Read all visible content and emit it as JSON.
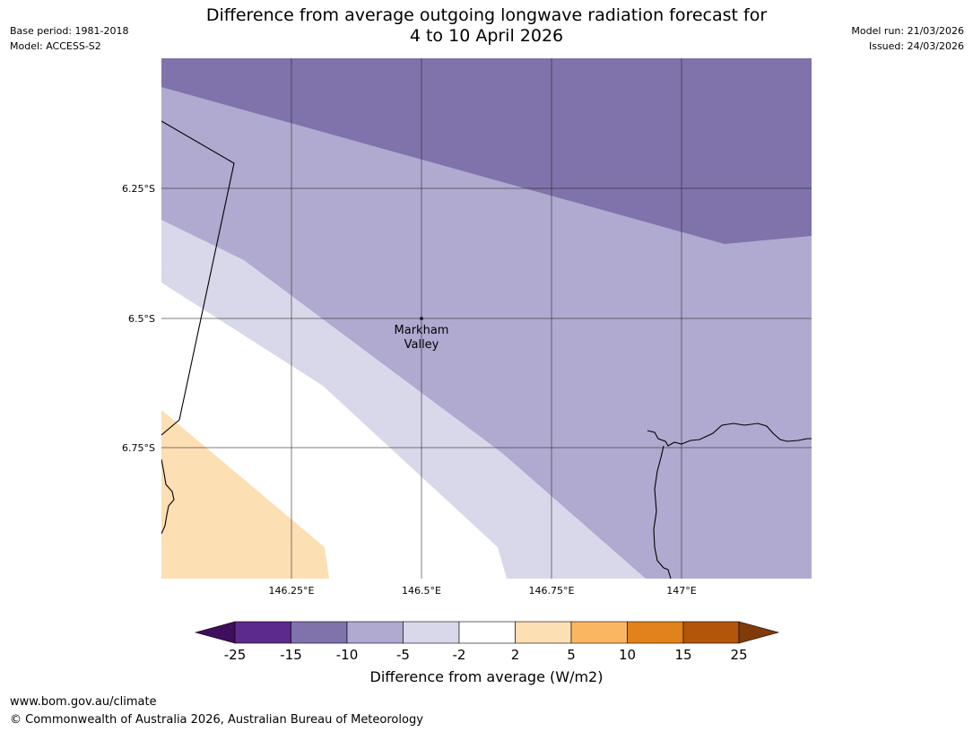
{
  "header": {
    "title_line1": "Difference from average outgoing longwave radiation forecast for",
    "title_line2": "4 to 10 April 2026",
    "base_period": "Base period: 1981-2018",
    "model": "Model: ACCESS-S2",
    "model_run": "Model run: 21/03/2026",
    "issued": "Issued: 24/03/2026"
  },
  "map": {
    "place_label_line1": "Markham",
    "place_label_line2": "Valley",
    "lat_labels": [
      "6.25°S",
      "6.5°S",
      "6.75°S"
    ],
    "lon_labels": [
      "146.25°E",
      "146.5°E",
      "146.75°E",
      "147°E"
    ]
  },
  "colorbar": {
    "label": "Difference from average (W/m2)",
    "ticks": [
      "-25",
      "-15",
      "-10",
      "-5",
      "-2",
      "2",
      "5",
      "10",
      "15",
      "25"
    ],
    "colors": [
      "#3f0e5c",
      "#5c2a8a",
      "#8072ab",
      "#b0aad0",
      "#d8d8ea",
      "#ffffff",
      "#fddfb4",
      "#fbb662",
      "#e1821a",
      "#b3560a",
      "#7f3b08"
    ]
  },
  "footer": {
    "url": "www.bom.gov.au/climate",
    "copyright": "© Commonwealth of Australia 2026, Australian Bureau of Meteorology"
  }
}
